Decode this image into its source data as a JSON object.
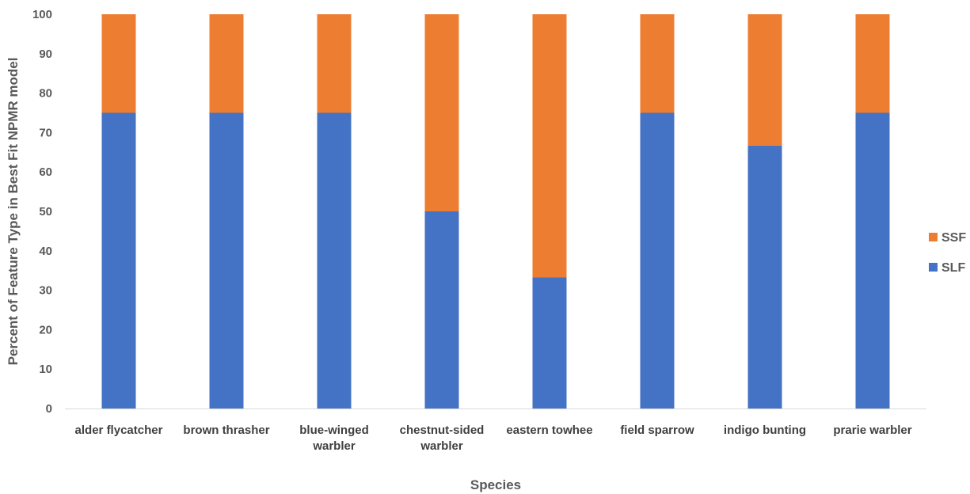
{
  "chart_data": {
    "type": "bar",
    "stacked": true,
    "categories": [
      [
        "alder flycatcher"
      ],
      [
        "brown thrasher"
      ],
      [
        "blue-winged",
        "warbler"
      ],
      [
        "chestnut-sided",
        "warbler"
      ],
      [
        "eastern towhee"
      ],
      [
        "field sparrow"
      ],
      [
        "indigo bunting"
      ],
      [
        "prarie warbler"
      ]
    ],
    "series": [
      {
        "name": "SLF",
        "color": "#4472C4",
        "values": [
          75,
          75,
          75,
          50,
          33.3,
          75,
          66.7,
          75
        ]
      },
      {
        "name": "SSF",
        "color": "#ED7D31",
        "values": [
          25,
          25,
          25,
          50,
          66.7,
          25,
          33.3,
          25
        ]
      }
    ],
    "xlabel": "Species",
    "ylabel": "Percent of Feature Type in Best Fit NPMR model",
    "ylim": [
      0,
      100
    ],
    "yticks": [
      0,
      10,
      20,
      30,
      40,
      50,
      60,
      70,
      80,
      90,
      100
    ],
    "grid": false,
    "legend": {
      "position": "right",
      "order": [
        "SSF",
        "SLF"
      ]
    }
  }
}
